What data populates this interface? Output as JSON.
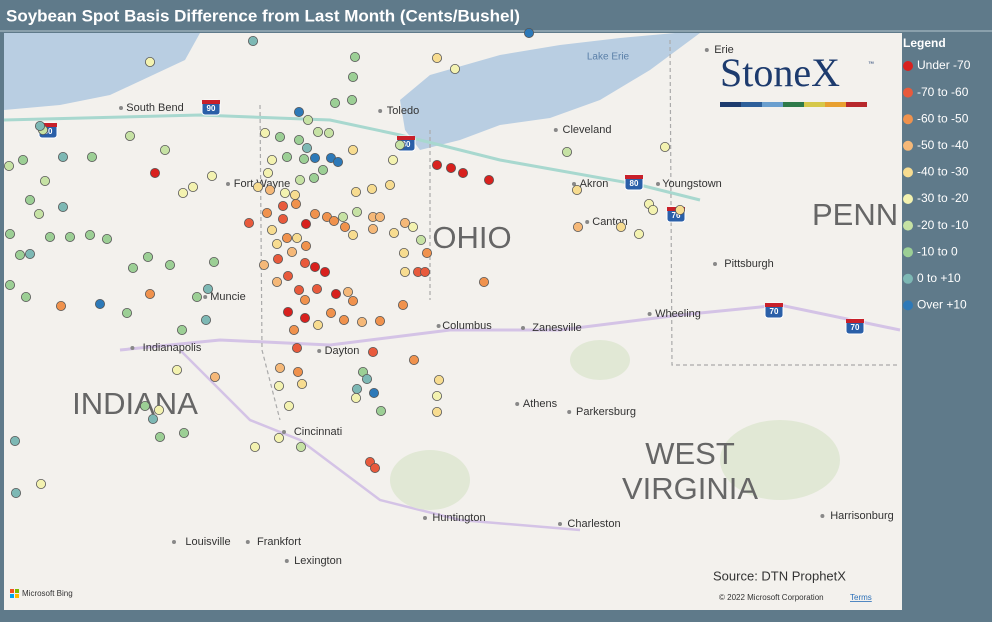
{
  "title": "Soybean Spot Basis Difference from Last Month (Cents/Bushel)",
  "legend": {
    "title": "Legend",
    "items": [
      {
        "label": "Under -70",
        "color": "#d8211e"
      },
      {
        "label": "-70 to -60",
        "color": "#e85a3c"
      },
      {
        "label": "-60 to -50",
        "color": "#f0924d"
      },
      {
        "label": "-50 to -40",
        "color": "#f5b878"
      },
      {
        "label": "-40 to -30",
        "color": "#f7dc90"
      },
      {
        "label": "-30 to -20",
        "color": "#f3f2b0"
      },
      {
        "label": "-20 to -10",
        "color": "#c6e2a4"
      },
      {
        "label": "-10 to 0",
        "color": "#9ccf95"
      },
      {
        "label": "0 to +10",
        "color": "#7db8b4"
      },
      {
        "label": "Over +10",
        "color": "#2d79b8"
      }
    ]
  },
  "logo": {
    "name": "StoneX",
    "tm": "™"
  },
  "map_labels": {
    "states": [
      "OHIO",
      "INDIANA",
      "WEST",
      "VIRGINIA",
      "PENN"
    ],
    "lakes": [
      "Lake Erie"
    ],
    "cities": [
      "South Bend",
      "Toledo",
      "Cleveland",
      "Erie",
      "Fort Wayne",
      "Akron",
      "Youngstown",
      "Canton",
      "Pittsburgh",
      "Muncie",
      "Wheeling",
      "Columbus",
      "Zanesville",
      "Indianapolis",
      "Dayton",
      "Athens",
      "Parkersburg",
      "Cincinnati",
      "Huntington",
      "Charleston",
      "Harrisonburg",
      "Louisville",
      "Frankfort",
      "Lexington"
    ],
    "highways": [
      "80",
      "90",
      "80",
      "80",
      "76",
      "70",
      "70"
    ]
  },
  "source": "Source: DTN ProphetX",
  "copyright": "© 2022 Microsoft Corporation",
  "terms": "Terms",
  "attribution": "Microsoft Bing"
}
